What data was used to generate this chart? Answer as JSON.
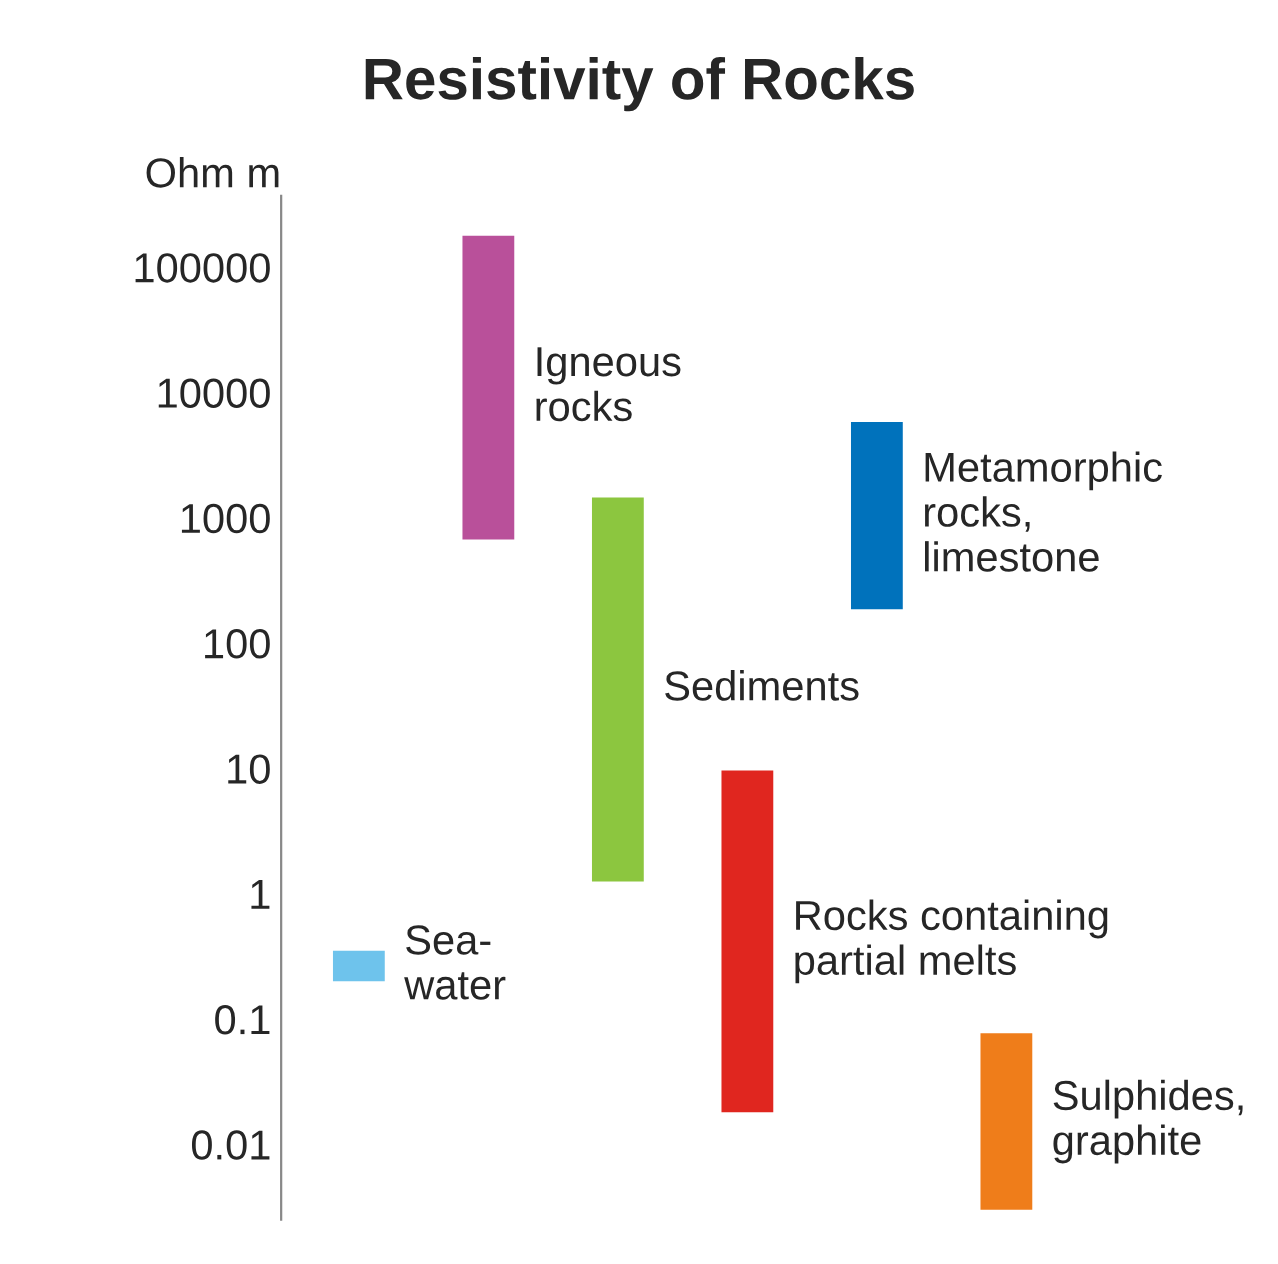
{
  "chart_data": {
    "type": "bar",
    "title": "Resistivity of Rocks",
    "ylabel": "Ohm m",
    "categories": [
      null,
      null,
      null,
      null,
      null,
      null
    ],
    "base": [
      0.2,
      670,
      1.25,
      0.018,
      186,
      0.003
    ],
    "values": [
      0.15,
      177330,
      1448.75,
      9.582,
      5614,
      0.074
    ],
    "colors": [
      "#6ec3ec",
      "#b9509a",
      "#8cc63f",
      "#e0261f",
      "#0072bc",
      "#ef7d1a"
    ],
    "annotations": [
      "Sea-\nwater",
      "Igneous\nrocks",
      "Sediments",
      "Rocks containing\npartial melts",
      "Metamorphic\nrocks,\nlimestone",
      "Sulphides,\ngraphite"
    ],
    "log": "y",
    "ylim": [
      0.0025,
      370000
    ],
    "yticks": [
      0.01,
      0.1,
      1,
      10,
      100,
      1000,
      10000,
      100000
    ],
    "tick_labels": "y",
    "grid": false,
    "legend": false
  }
}
